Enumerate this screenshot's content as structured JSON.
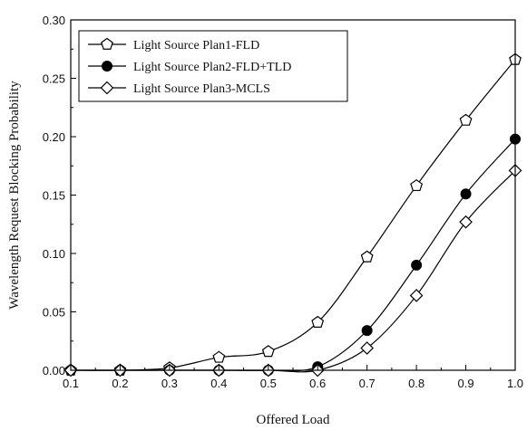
{
  "chart_data": {
    "type": "line",
    "title": "",
    "xlabel": "Offered Load",
    "ylabel": "Wavelength Request Blocking Probability",
    "xlim": [
      0.1,
      1.0
    ],
    "ylim": [
      0.0,
      0.3
    ],
    "x": [
      0.1,
      0.2,
      0.3,
      0.4,
      0.5,
      0.6,
      0.7,
      0.8,
      0.9,
      1.0
    ],
    "x_tick_labels": [
      "0.1",
      "0.2",
      "0.3",
      "0.4",
      "0.5",
      "0.6",
      "0.7",
      "0.8",
      "0.9",
      "1.0"
    ],
    "y_ticks": [
      0.0,
      0.05,
      0.1,
      0.15,
      0.2,
      0.25,
      0.3
    ],
    "y_tick_labels": [
      "0.00",
      "0.05",
      "0.10",
      "0.15",
      "0.20",
      "0.25",
      "0.30"
    ],
    "grid": false,
    "legend_position": "top-left",
    "series": [
      {
        "name": "Light Source Plan1-FLD",
        "marker": "pentagon-open",
        "values": [
          0.0,
          0.0,
          0.002,
          0.011,
          0.016,
          0.041,
          0.097,
          0.158,
          0.214,
          0.266
        ]
      },
      {
        "name": "Light Source Plan2-FLD+TLD",
        "marker": "circle-filled",
        "values": [
          0.0,
          0.0,
          0.0,
          0.0,
          0.0,
          0.003,
          0.034,
          0.09,
          0.151,
          0.198
        ]
      },
      {
        "name": "Light Source Plan3-MCLS",
        "marker": "diamond-open",
        "values": [
          0.0,
          0.0,
          0.0,
          0.0,
          0.0,
          0.0,
          0.019,
          0.064,
          0.127,
          0.171
        ]
      }
    ]
  }
}
